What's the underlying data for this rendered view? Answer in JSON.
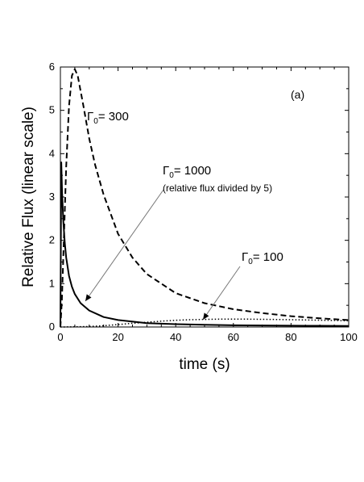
{
  "chart_data": {
    "type": "line",
    "xlabel": "time (s)",
    "ylabel": "Relative Flux (linear scale)",
    "xlim": [
      0,
      100
    ],
    "ylim": [
      0,
      6
    ],
    "x_ticks": [
      "0",
      "20",
      "40",
      "60",
      "80",
      "100"
    ],
    "y_ticks": [
      "0",
      "1",
      "2",
      "3",
      "4",
      "5",
      "6"
    ],
    "panel_label": "(a)",
    "grid": false,
    "series": [
      {
        "style": "dashed",
        "x": [
          0,
          0.5,
          1,
          2,
          3,
          4,
          5,
          6,
          8,
          10,
          12,
          15,
          20,
          25,
          30,
          40,
          50,
          60,
          70,
          80,
          90,
          100
        ],
        "y": [
          0,
          0.6,
          1.6,
          3.7,
          5.1,
          5.8,
          5.95,
          5.8,
          5.1,
          4.35,
          3.75,
          3.05,
          2.15,
          1.6,
          1.22,
          0.78,
          0.55,
          0.41,
          0.32,
          0.25,
          0.2,
          0.16
        ]
      },
      {
        "style": "solid",
        "x": [
          0,
          0.3,
          0.6,
          1,
          1.5,
          2,
          3,
          4,
          5,
          7,
          10,
          15,
          20,
          30,
          40,
          50,
          60,
          70,
          80,
          90,
          100
        ],
        "y": [
          0,
          3.8,
          3.1,
          2.45,
          1.95,
          1.6,
          1.18,
          0.93,
          0.76,
          0.55,
          0.38,
          0.23,
          0.16,
          0.09,
          0.065,
          0.05,
          0.04,
          0.035,
          0.03,
          0.028,
          0.025
        ]
      },
      {
        "style": "dotted",
        "x": [
          0,
          5,
          10,
          15,
          20,
          25,
          30,
          35,
          40,
          45,
          50,
          55,
          60,
          65,
          70,
          75,
          80,
          85,
          90,
          95,
          100
        ],
        "y": [
          0,
          0.003,
          0.012,
          0.03,
          0.055,
          0.085,
          0.11,
          0.135,
          0.155,
          0.168,
          0.176,
          0.18,
          0.181,
          0.18,
          0.177,
          0.173,
          0.168,
          0.162,
          0.156,
          0.15,
          0.143
        ]
      }
    ],
    "annotations": [
      {
        "symbol": "Γ",
        "subscript": "0",
        "text": "= 300"
      },
      {
        "symbol": "Γ",
        "subscript": "0",
        "text": "= 1000",
        "note": "(relative flux divided by 5)"
      },
      {
        "symbol": "Γ",
        "subscript": "0",
        "text": "= 100"
      }
    ]
  }
}
